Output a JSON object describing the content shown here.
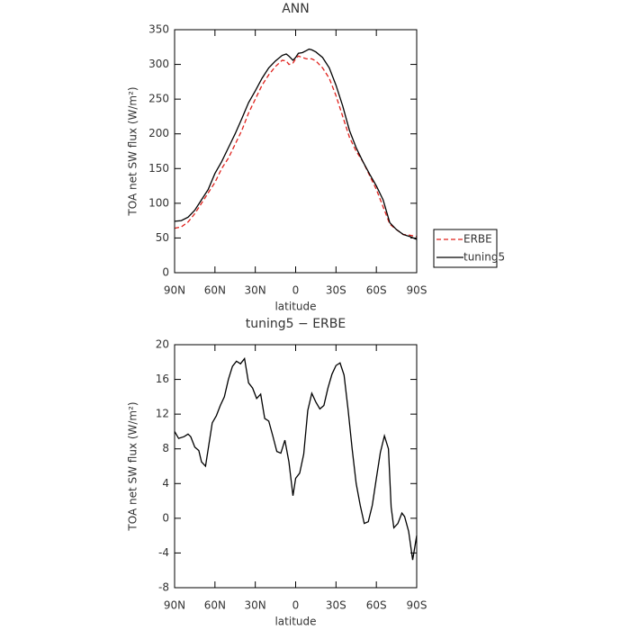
{
  "chart_data": [
    {
      "type": "line",
      "title": "ANN",
      "x_label": "latitude",
      "y_label": "TOA net SW flux (W/m²)",
      "x": [
        90,
        85,
        80,
        75,
        70,
        65,
        60,
        55,
        50,
        45,
        40,
        35,
        30,
        25,
        20,
        15,
        10,
        7,
        5,
        2,
        0,
        -2,
        -5,
        -8,
        -10,
        -12,
        -15,
        -20,
        -25,
        -30,
        -35,
        -40,
        -45,
        -50,
        -55,
        -60,
        -65,
        -70,
        -75,
        -80,
        -85,
        -90
      ],
      "series": [
        {
          "name": "ERBE",
          "color": "#e0201b",
          "dash": "dashed",
          "values": [
            64,
            66,
            73,
            85,
            100,
            115,
            130,
            150,
            165,
            185,
            205,
            230,
            250,
            270,
            285,
            297,
            306,
            305,
            300,
            302,
            308,
            312,
            310,
            308,
            308,
            308,
            305,
            295,
            280,
            255,
            225,
            195,
            175,
            160,
            140,
            120,
            95,
            70,
            62,
            55,
            54,
            52
          ]
        },
        {
          "name": "tuning5",
          "color": "#000000",
          "dash": "solid",
          "values": [
            74,
            75,
            80,
            90,
            105,
            120,
            143,
            160,
            180,
            200,
            222,
            245,
            262,
            280,
            295,
            305,
            313,
            315,
            312,
            306,
            310,
            316,
            317,
            320,
            322,
            321,
            318,
            310,
            295,
            270,
            240,
            205,
            180,
            160,
            142,
            125,
            105,
            72,
            62,
            55,
            52,
            48
          ]
        }
      ],
      "xlim": [
        90,
        -90
      ],
      "xticks": [
        {
          "value": 90,
          "label": "90N"
        },
        {
          "value": 60,
          "label": "60N"
        },
        {
          "value": 30,
          "label": "30N"
        },
        0,
        {
          "value": -30,
          "label": "30S"
        },
        {
          "value": -60,
          "label": "60S"
        },
        {
          "value": -90,
          "label": "90S"
        }
      ],
      "ylim": [
        0,
        350
      ],
      "yticks": [
        0,
        50,
        100,
        150,
        200,
        250,
        300,
        350
      ],
      "legend": "right"
    },
    {
      "type": "line",
      "title": "tuning5 − ERBE",
      "x_label": "latitude",
      "y_label": "TOA net SW flux (W/m²)",
      "x": [
        90,
        87,
        83,
        80,
        78,
        75,
        72,
        70,
        67,
        65,
        62,
        59,
        56,
        53,
        50,
        47,
        44,
        41,
        38,
        35,
        32,
        29,
        26,
        23,
        20,
        17,
        14,
        11,
        8,
        5,
        2,
        0,
        -3,
        -6,
        -9,
        -12,
        -15,
        -18,
        -21,
        -24,
        -27,
        -30,
        -33,
        -36,
        -39,
        -42,
        -45,
        -48,
        -51,
        -54,
        -57,
        -60,
        -63,
        -66,
        -69,
        -71,
        -73,
        -76,
        -79,
        -81,
        -84,
        -87,
        -90
      ],
      "series": [
        {
          "name": "tuning5 − ERBE",
          "color": "#000000",
          "dash": "solid",
          "values": [
            10,
            9.2,
            9.4,
            9.7,
            9.4,
            8.2,
            7.8,
            6.5,
            6.0,
            8,
            11,
            11.8,
            13,
            14,
            16,
            17.5,
            18.1,
            17.8,
            18.4,
            15.6,
            15,
            13.8,
            14.3,
            11.5,
            11.2,
            9.5,
            7.7,
            7.5,
            9,
            6.5,
            2.6,
            4.6,
            5.2,
            7.4,
            12.4,
            14.4,
            13.4,
            12.6,
            13,
            15,
            16.6,
            17.6,
            17.9,
            16.5,
            12.5,
            8,
            4,
            1.5,
            -0.6,
            -0.4,
            1.5,
            4.6,
            7.6,
            9.5,
            8,
            1.3,
            -1.1,
            -0.6,
            0.6,
            0.2,
            -1.5,
            -4.8,
            -2
          ]
        }
      ],
      "xlim": [
        90,
        -90
      ],
      "xticks": [
        {
          "value": 90,
          "label": "90N"
        },
        {
          "value": 60,
          "label": "60N"
        },
        {
          "value": 30,
          "label": "30N"
        },
        0,
        {
          "value": -30,
          "label": "30S"
        },
        {
          "value": -60,
          "label": "60S"
        },
        {
          "value": -90,
          "label": "90S"
        }
      ],
      "ylim": [
        -8,
        20
      ],
      "yticks": [
        -8,
        -4,
        0,
        4,
        8,
        12,
        16,
        20
      ]
    }
  ]
}
